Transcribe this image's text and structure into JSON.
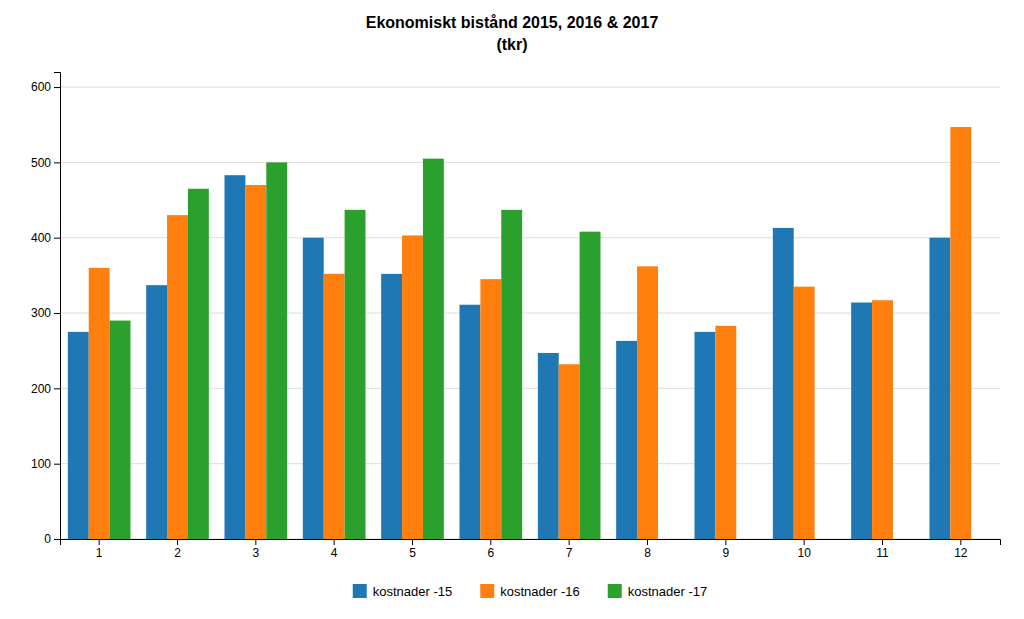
{
  "chart_data": {
    "type": "bar",
    "title": "Ekonomiskt bistånd 2015, 2016 & 2017",
    "subtitle": "(tkr)",
    "categories": [
      1,
      2,
      3,
      4,
      5,
      6,
      7,
      8,
      9,
      10,
      11,
      12
    ],
    "series": [
      {
        "name": "kostnader -15",
        "values": [
          275,
          337,
          483,
          400,
          352,
          311,
          247,
          263,
          275,
          413,
          314,
          400
        ]
      },
      {
        "name": "kostnader -16",
        "values": [
          360,
          430,
          470,
          352,
          403,
          345,
          232,
          362,
          283,
          335,
          317,
          547
        ]
      },
      {
        "name": "kostnader -17",
        "values": [
          290,
          465,
          500,
          437,
          505,
          437,
          408,
          null,
          null,
          null,
          null,
          null
        ]
      }
    ],
    "ylim": [
      0,
      620
    ],
    "yticks": [
      0,
      100,
      200,
      300,
      400,
      500,
      600
    ],
    "grid": true,
    "legend": "bottom"
  }
}
